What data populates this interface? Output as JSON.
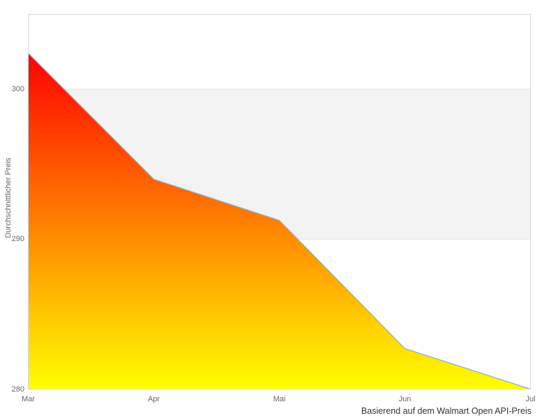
{
  "chart_data": {
    "type": "area",
    "categories": [
      "Mar",
      "Apr",
      "Mai",
      "Jun",
      "Jul"
    ],
    "series": [
      {
        "name": "Durchschnittlicher Preis",
        "values": [
          302.4,
          294.0,
          291.25,
          282.7,
          280.0
        ]
      }
    ],
    "xlabel": "",
    "ylabel": "Durchschnittlicher Preis",
    "caption": "Basierend auf dem Walmart Open API-Preis",
    "ylim": [
      280,
      305
    ],
    "yticks": [
      280,
      290,
      300
    ],
    "band": {
      "from": 290,
      "to": 300
    },
    "grid": true,
    "legend_position": "none",
    "colors": {
      "area_gradient_top": "#ff0000",
      "area_gradient_bottom": "#ffff00",
      "line": "#7cb5ec",
      "band_fill": "#f3f3f3",
      "grid_line": "#e0e0e0",
      "plot_border": "#d8d8d8",
      "axis_label": "#666666",
      "caption_text": "#333333",
      "background": "#ffffff"
    }
  }
}
